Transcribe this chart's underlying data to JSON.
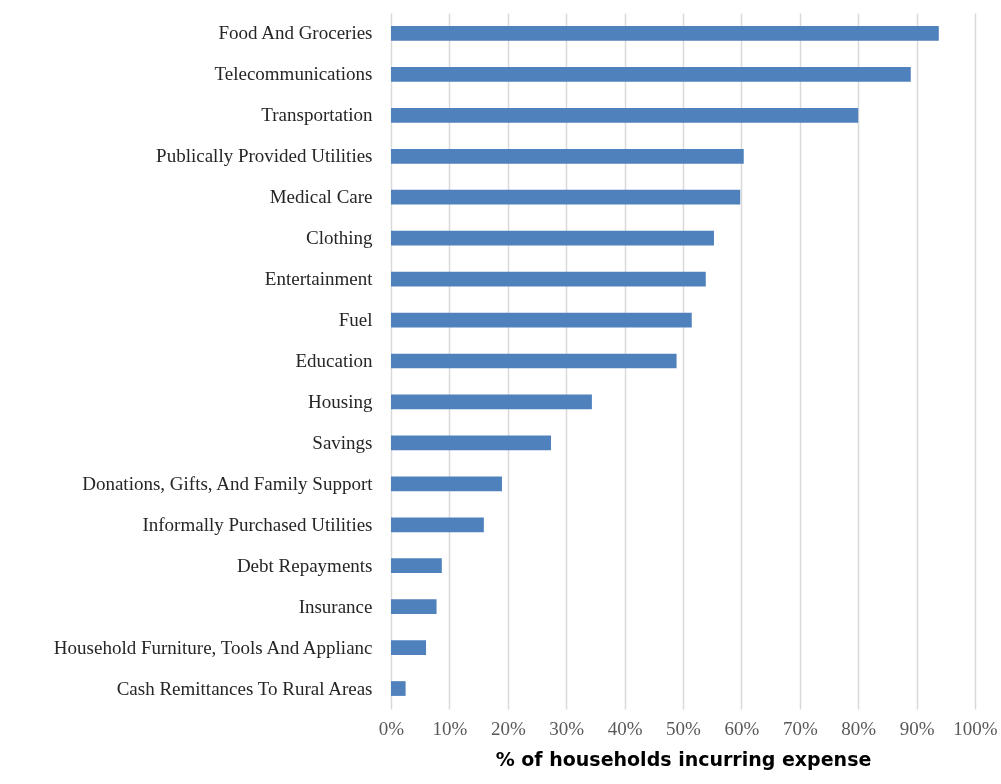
{
  "chart_data": {
    "type": "bar",
    "orientation": "horizontal",
    "xlabel": "% of households incurring expense",
    "categories": [
      "Food And Groceries",
      "Telecommunications",
      "Transportation",
      "Publically Provided Utilities",
      "Medical Care",
      "Clothing",
      "Entertainment",
      "Fuel",
      "Education",
      "Housing",
      "Savings",
      "Donations, Gifts, And Family Support",
      "Informally Purchased Utilities",
      "Debt Repayments",
      "Insurance",
      "Household Furniture, Tools And Applianc",
      "Cash Remittances To Rural Areas"
    ],
    "values": [
      93.8,
      89.0,
      80.0,
      60.4,
      59.8,
      55.3,
      53.9,
      51.5,
      48.9,
      34.4,
      27.4,
      19.0,
      15.9,
      8.7,
      7.8,
      6.0,
      2.5
    ],
    "color": "#4f81bd",
    "xlim": [
      0,
      100
    ],
    "xticks": [
      {
        "value": 0,
        "label": "0%"
      },
      {
        "value": 10,
        "label": "10%"
      },
      {
        "value": 20,
        "label": "20%"
      },
      {
        "value": 30,
        "label": "30%"
      },
      {
        "value": 40,
        "label": "40%"
      },
      {
        "value": 50,
        "label": "50%"
      },
      {
        "value": 60,
        "label": "60%"
      },
      {
        "value": 70,
        "label": "70%"
      },
      {
        "value": 80,
        "label": "80%"
      },
      {
        "value": 90,
        "label": "90%"
      },
      {
        "value": 100,
        "label": "100%"
      }
    ],
    "grid": "x"
  }
}
